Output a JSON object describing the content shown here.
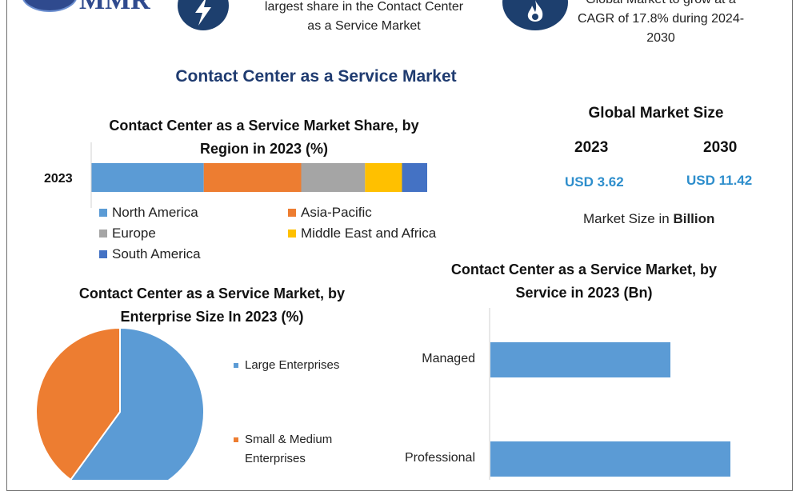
{
  "header": {
    "logo_text": "MMR",
    "share_text_line1": "largest share in the Contact Center",
    "share_text_line2": "as a Service Market",
    "growth_text_line1": "Global Market to grow at a",
    "growth_text_line2": "CAGR of 17.8% during 2024-",
    "growth_text_line3": "2030",
    "icons": [
      "lightning-icon",
      "flame-icon"
    ]
  },
  "main_title": "Contact Center as a Service Market",
  "region_chart": {
    "title_line1": "Contact Center as a Service Market Share, by",
    "title_line2": "Region in 2023 (%)"
  },
  "market_size": {
    "title": "Global Market Size",
    "year_a": "2023",
    "year_b": "2030",
    "value_a": "USD 3.62",
    "value_b": "USD 11.42",
    "note_prefix": "Market Size in",
    "note_bold": "Billion"
  },
  "enterprise_chart": {
    "title_line1": "Contact Center as a Service Market, by",
    "title_line2": "Enterprise Size In 2023 (%)",
    "legend_large": "Large Enterprises",
    "legend_sme_line1": "Small & Medium",
    "legend_sme_line2": "Enterprises"
  },
  "service_chart": {
    "title_line1": "Contact Center as a Service Market, by",
    "title_line2": "Service in 2023 (Bn)"
  },
  "chart_data": [
    {
      "type": "bar",
      "orientation": "horizontal-stacked",
      "categories": [
        "2023"
      ],
      "series": [
        {
          "name": "North America",
          "values": [
            33.5
          ],
          "color": "#5b9bd5"
        },
        {
          "name": "Asia-Pacific",
          "values": [
            29
          ],
          "color": "#ed7d31"
        },
        {
          "name": "Europe",
          "values": [
            19
          ],
          "color": "#a5a5a5"
        },
        {
          "name": "Middle East and Africa",
          "values": [
            11
          ],
          "color": "#ffc000"
        },
        {
          "name": "South America",
          "values": [
            7.5
          ],
          "color": "#4472c4"
        }
      ],
      "xlim": [
        0,
        100
      ],
      "legend": "bottom"
    },
    {
      "type": "pie",
      "labels": [
        "Large Enterprises",
        "Small & Medium Enterprises"
      ],
      "values": [
        60,
        40
      ],
      "colors": [
        "#5b9bd5",
        "#ed7d31"
      ],
      "legend": "right"
    },
    {
      "type": "bar",
      "orientation": "horizontal",
      "categories": [
        "Managed",
        "Professional"
      ],
      "values": [
        1.5,
        2.0
      ],
      "color": "#5b9bd5",
      "xlim": [
        0,
        2.3
      ]
    }
  ]
}
